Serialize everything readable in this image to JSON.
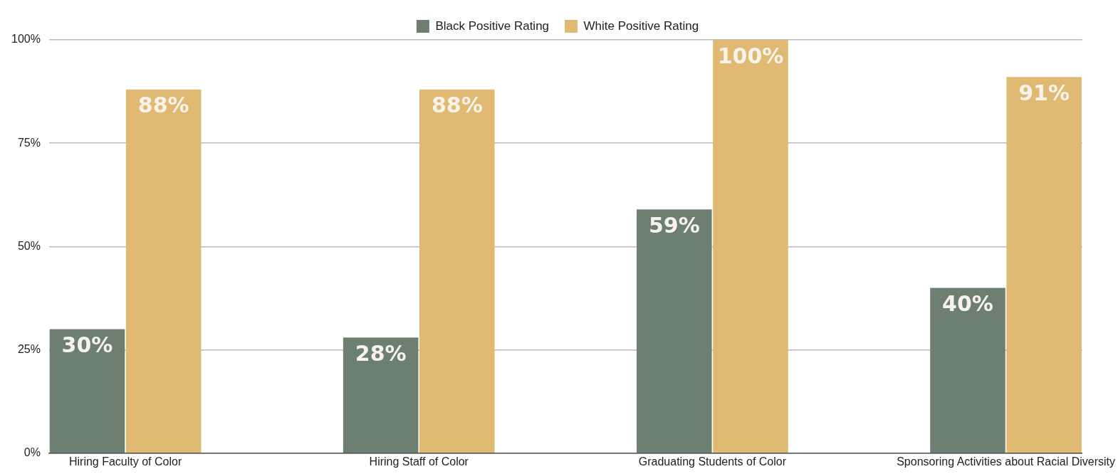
{
  "chart_data": {
    "type": "bar",
    "categories": [
      "Hiring Faculty of Color",
      "Hiring Staff of Color",
      "Graduating Students of Color",
      "Sponsoring Activities about Racial Diversity"
    ],
    "series": [
      {
        "name": "Black Positive Rating",
        "color": "#6d7f71",
        "values": [
          30,
          28,
          59,
          40
        ],
        "value_labels": [
          "30%",
          "28%",
          "59%",
          "40%"
        ]
      },
      {
        "name": "White Positive Rating",
        "color": "#e0b972",
        "values": [
          88,
          88,
          100,
          91
        ],
        "value_labels": [
          "88%",
          "88%",
          "100%",
          "91%"
        ]
      }
    ],
    "ylim": [
      0,
      100
    ],
    "yticks": [
      {
        "value": 0,
        "label": "0%"
      },
      {
        "value": 25,
        "label": "25%"
      },
      {
        "value": 50,
        "label": "50%"
      },
      {
        "value": 75,
        "label": "75%"
      },
      {
        "value": 100,
        "label": "100%"
      }
    ],
    "grid": "y",
    "legend": "top"
  }
}
